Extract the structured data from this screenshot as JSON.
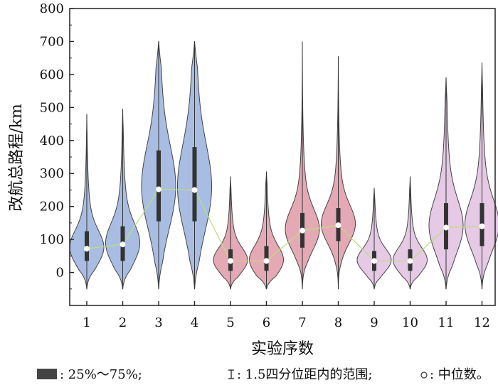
{
  "chart_data": {
    "type": "violin",
    "title": "",
    "xlabel": "实验序数",
    "ylabel": "改航总路程/km",
    "ylim": [
      -100,
      800
    ],
    "yticks": [
      0,
      100,
      200,
      300,
      400,
      500,
      600,
      700,
      800
    ],
    "categories": [
      "1",
      "2",
      "3",
      "4",
      "5",
      "6",
      "7",
      "8",
      "9",
      "10",
      "11",
      "12"
    ],
    "series": [
      {
        "category": "1",
        "group_color": "#a9bde3",
        "min": -50,
        "max": 480,
        "q1": 35,
        "q3": 125,
        "median": 72
      },
      {
        "category": "2",
        "group_color": "#a9bde3",
        "min": -50,
        "max": 495,
        "q1": 35,
        "q3": 140,
        "median": 85
      },
      {
        "category": "3",
        "group_color": "#a9bde3",
        "min": -50,
        "max": 700,
        "q1": 155,
        "q3": 370,
        "median": 252
      },
      {
        "category": "4",
        "group_color": "#a9bde3",
        "min": -50,
        "max": 700,
        "q1": 155,
        "q3": 380,
        "median": 250
      },
      {
        "category": "5",
        "group_color": "#e4a9b5",
        "min": -50,
        "max": 290,
        "q1": 5,
        "q3": 70,
        "median": 35
      },
      {
        "category": "6",
        "group_color": "#e4a9b5",
        "min": -50,
        "max": 305,
        "q1": 5,
        "q3": 80,
        "median": 35
      },
      {
        "category": "7",
        "group_color": "#e4a9b5",
        "min": -50,
        "max": 700,
        "q1": 75,
        "q3": 180,
        "median": 127
      },
      {
        "category": "8",
        "group_color": "#e4a9b5",
        "min": -50,
        "max": 655,
        "q1": 95,
        "q3": 195,
        "median": 143
      },
      {
        "category": "9",
        "group_color": "#e5c9e5",
        "min": -50,
        "max": 255,
        "q1": 5,
        "q3": 65,
        "median": 35
      },
      {
        "category": "10",
        "group_color": "#e5c9e5",
        "min": -50,
        "max": 290,
        "q1": 5,
        "q3": 70,
        "median": 35
      },
      {
        "category": "11",
        "group_color": "#e5c9e5",
        "min": -50,
        "max": 590,
        "q1": 70,
        "q3": 210,
        "median": 136
      },
      {
        "category": "12",
        "group_color": "#e5c9e5",
        "min": -50,
        "max": 635,
        "q1": 80,
        "q3": 210,
        "median": 140
      }
    ],
    "median_line_color": "#b9e07a",
    "grid": false
  },
  "legend": {
    "box_text": ": 25%～75%;",
    "whisker_text": ": 1.5四分位距内的范围;",
    "median_text": ": 中位数。"
  }
}
